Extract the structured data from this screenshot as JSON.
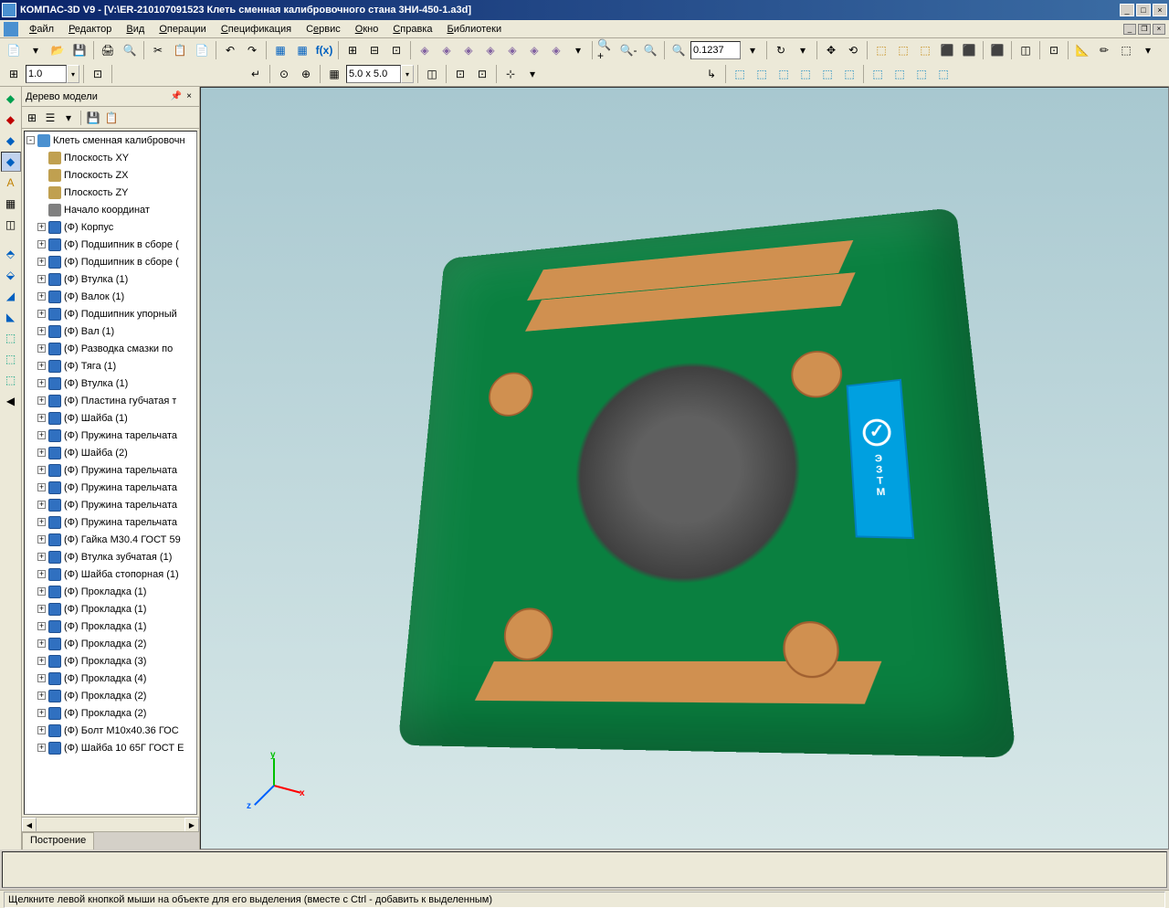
{
  "window": {
    "title": "КОМПАС-3D V9 - [V:\\ER-210107091523 Клеть сменная калибровочного стана 3НИ-450-1.a3d]"
  },
  "menu": {
    "items": [
      "Файл",
      "Редактор",
      "Вид",
      "Операции",
      "Спецификация",
      "Сервис",
      "Окно",
      "Справка",
      "Библиотеки"
    ]
  },
  "toolbar": {
    "scale_value": "1.0",
    "grid_value": "5.0 x 5.0",
    "zoom_value": "0.1237"
  },
  "tree": {
    "panel_title": "Дерево модели",
    "tab_label": "Построение",
    "root": "Клеть сменная калибровочн",
    "planes": [
      "Плоскость XY",
      "Плоскость ZX",
      "Плоскость ZY"
    ],
    "origin": "Начало координат",
    "parts": [
      "(Ф) Корпус",
      "(Ф) Подшипник в сборе (",
      "(Ф) Подшипник в сборе (",
      "(Ф) Втулка (1)",
      "(Ф) Валок (1)",
      "(Ф) Подшипник упорный",
      "(Ф) Вал (1)",
      "(Ф) Разводка смазки по",
      "(Ф) Тяга (1)",
      "(Ф) Втулка (1)",
      "(Ф)  Пластина губчатая т",
      "(Ф) Шайба (1)",
      "(Ф) Пружина тарельчата",
      "(Ф) Шайба (2)",
      "(Ф) Пружина тарельчата",
      "(Ф) Пружина тарельчата",
      "(Ф) Пружина тарельчата",
      "(Ф) Пружина тарельчата",
      "(Ф) Гайка М30.4 ГОСТ 59",
      "(Ф) Втулка зубчатая (1)",
      "(Ф) Шайба стопорная (1)",
      "(Ф) Прокладка (1)",
      "(Ф) Прокладка (1)",
      "(Ф) Прокладка (1)",
      "(Ф) Прокладка (2)",
      "(Ф) Прокладка (3)",
      "(Ф) Прокладка (4)",
      "(Ф) Прокладка (2)",
      "(Ф) Прокладка (2)",
      "(Ф) Болт М10х40.36 ГОС",
      "(Ф) Шайба 10 65Г ГОСТ Е"
    ]
  },
  "viewport": {
    "badge_text": "ЭЗТМ",
    "axis_x": "x",
    "axis_y": "y",
    "axis_z": "z",
    "colors": {
      "body": "#0a8040",
      "rail": "#d09050",
      "badge": "#00a0e0",
      "flange": "#d09050",
      "bg_top": "#a8c8d0",
      "bg_bottom": "#d8e8e8"
    }
  },
  "status": {
    "text": "Щелкните левой кнопкой мыши на объекте для его выделения (вместе с Ctrl - добавить к выделенным)"
  }
}
